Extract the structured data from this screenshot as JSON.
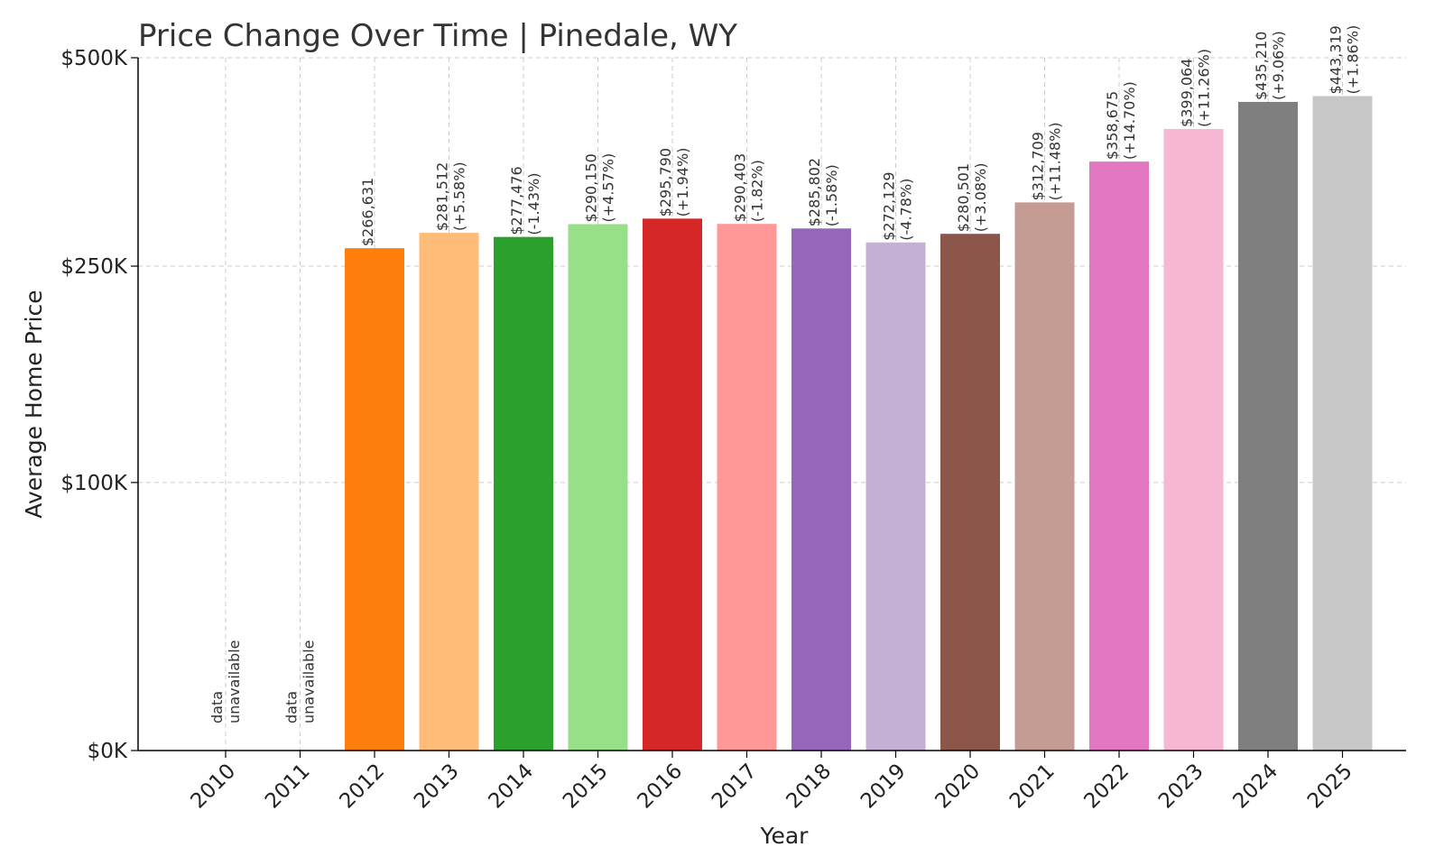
{
  "chart_data": {
    "type": "bar",
    "title": "Price Change Over Time | Pinedale, WY",
    "xlabel": "Year",
    "ylabel": "Average Home Price",
    "ylim": [
      0,
      500000
    ],
    "yscale": "symlog",
    "yticks": [
      {
        "value": 0,
        "label": "$0K"
      },
      {
        "value": 100000,
        "label": "$100K"
      },
      {
        "value": 250000,
        "label": "$250K"
      },
      {
        "value": 500000,
        "label": "$500K"
      }
    ],
    "grid": true,
    "unavailable_label_line1": "data",
    "unavailable_label_line2": "unavailable",
    "categories": [
      "2010",
      "2011",
      "2012",
      "2013",
      "2014",
      "2015",
      "2016",
      "2017",
      "2018",
      "2019",
      "2020",
      "2021",
      "2022",
      "2023",
      "2024",
      "2025"
    ],
    "values": [
      null,
      null,
      266631,
      281512,
      277476,
      290150,
      295790,
      290403,
      285802,
      272129,
      280501,
      312709,
      358675,
      399064,
      435210,
      443319
    ],
    "value_labels": [
      "",
      "",
      "$266,631",
      "$281,512",
      "$277,476",
      "$290,150",
      "$295,790",
      "$290,403",
      "$285,802",
      "$272,129",
      "$280,501",
      "$312,709",
      "$358,675",
      "$399,064",
      "$435,210",
      "$443,319"
    ],
    "change_labels": [
      "",
      "",
      "",
      "(+5.58%)",
      "(-1.43%)",
      "(+4.57%)",
      "(+1.94%)",
      "(-1.82%)",
      "(-1.58%)",
      "(-4.78%)",
      "(+3.08%)",
      "(+11.48%)",
      "(+14.70%)",
      "(+11.26%)",
      "(+9.06%)",
      "(+1.86%)"
    ],
    "colors": [
      "#1f77b4",
      "#aec7e8",
      "#ff7f0e",
      "#ffbb78",
      "#2ca02c",
      "#98df8a",
      "#d62728",
      "#ff9896",
      "#9467bd",
      "#c5b0d5",
      "#8c564b",
      "#c49c94",
      "#e377c2",
      "#f7b6d2",
      "#7f7f7f",
      "#c7c7c7"
    ]
  }
}
